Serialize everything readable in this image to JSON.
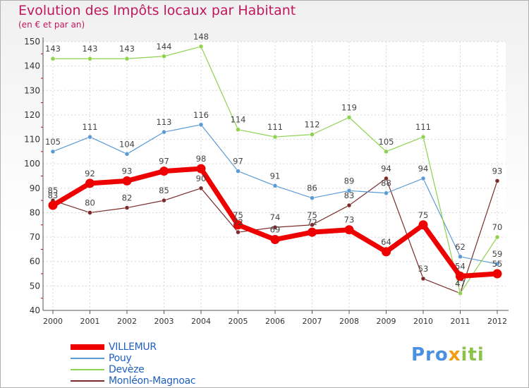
{
  "chart_data": {
    "type": "line",
    "title": "Evolution des Impôts locaux par Habitant",
    "subtitle": "(en € et par an)",
    "xlabel": "",
    "ylabel": "",
    "ylim": [
      40,
      150
    ],
    "yticks": [
      "40",
      "50",
      "60",
      "70",
      "80",
      "90",
      "100",
      "110",
      "120",
      "130",
      "140",
      "150"
    ],
    "categories": [
      "2000",
      "2001",
      "2002",
      "2003",
      "2004",
      "2005",
      "2006",
      "2007",
      "2008",
      "2009",
      "2010",
      "2011",
      "2012"
    ],
    "series": [
      {
        "name": "VILLEMUR",
        "color": "#ee0000",
        "values": [
          83,
          92,
          93,
          97,
          98,
          75,
          69,
          72,
          73,
          64,
          75,
          54,
          55
        ],
        "labels": [
          "83",
          "92",
          "93",
          "97",
          "98",
          "75",
          "69",
          "72",
          "73",
          "64",
          "75",
          "54",
          "55"
        ]
      },
      {
        "name": "Pouy",
        "color": "#5b9bd5",
        "values": [
          105,
          111,
          104,
          113,
          116,
          97,
          91,
          86,
          89,
          88,
          94,
          62,
          59
        ],
        "labels": [
          "105",
          "111",
          "104",
          "113",
          "116",
          "97",
          "91",
          "86",
          "89",
          "88",
          "94",
          "62",
          "59"
        ]
      },
      {
        "name": "Devèze",
        "color": "#8ed24f",
        "values": [
          143,
          143,
          143,
          144,
          148,
          114,
          111,
          112,
          119,
          105,
          111,
          47,
          70
        ],
        "labels": [
          "143",
          "143",
          "143",
          "144",
          "148",
          "114",
          "111",
          "112",
          "119",
          "105",
          "111",
          "47",
          "70"
        ]
      },
      {
        "name": "Monléon-Magnoac",
        "color": "#7b2b2b",
        "values": [
          85,
          80,
          82,
          85,
          90,
          72,
          74,
          75,
          83,
          94,
          53,
          47,
          93
        ],
        "labels": [
          "85",
          "80",
          "82",
          "85",
          "90",
          "72",
          "74",
          "75",
          "83",
          "94",
          "53",
          "47",
          "93"
        ]
      }
    ]
  },
  "logo": {
    "part1": "Pro",
    "part2": "x",
    "part3": "iti"
  }
}
